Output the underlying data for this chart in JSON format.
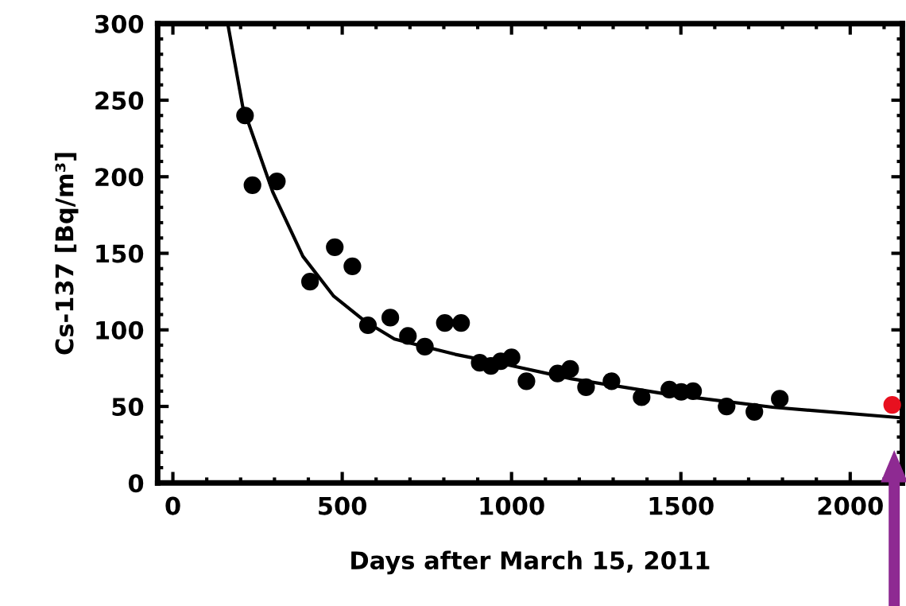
{
  "chart_data": {
    "type": "scatter",
    "xlabel": "Days after March 15, 2011",
    "ylabel": "Cs-137 [Bq/m³]",
    "xlim": [
      -45,
      2154
    ],
    "xticks": [
      0,
      500,
      1000,
      1500,
      2000
    ],
    "ylim": [
      0,
      300
    ],
    "yticks": [
      0,
      50,
      100,
      150,
      200,
      250,
      300
    ],
    "grid": false,
    "legend": false,
    "marker": "circle",
    "series": [
      {
        "color": "#000000",
        "x": [
          213,
          235,
          307,
          405,
          478,
          530,
          576,
          642,
          694,
          744,
          803,
          851,
          906,
          939,
          968,
          1000,
          1044,
          1136,
          1173,
          1220,
          1295,
          1384,
          1466,
          1501,
          1536,
          1635,
          1717,
          1792
        ],
        "values": [
          240,
          194.5,
          197,
          131.5,
          154,
          141.5,
          103,
          108,
          96,
          89,
          104.5,
          104.5,
          78.5,
          76.5,
          79.5,
          82,
          66.5,
          71.5,
          74.5,
          62.5,
          66.5,
          56,
          61,
          59.5,
          60,
          50,
          46.5,
          55
        ]
      },
      {
        "color": "#e8101f",
        "x": [
          2124
        ],
        "values": [
          51
        ]
      },
      {
        "type": "line",
        "color": "#000000",
        "line_style": "solid",
        "marker": "none",
        "x": [
          162,
          206,
          295,
          384,
          475,
          565,
          654,
          834,
          991,
          1178,
          1459,
          1770,
          2154
        ],
        "values": [
          300,
          246,
          190,
          148,
          122,
          106,
          94,
          84,
          77,
          68,
          58,
          49.5,
          42.5
        ]
      }
    ]
  }
}
